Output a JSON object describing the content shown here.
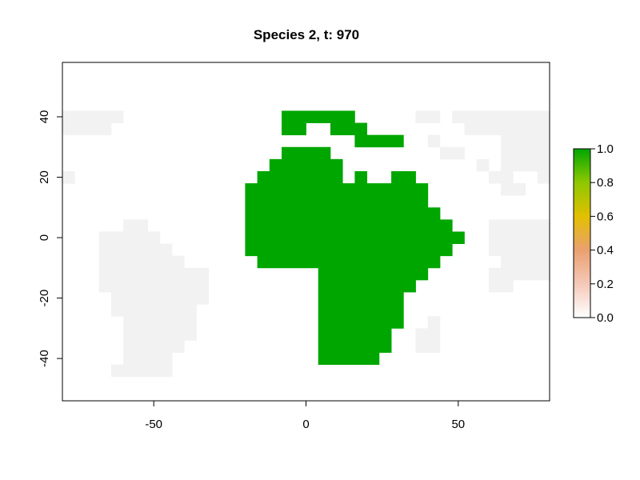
{
  "chart_data": {
    "type": "heatmap",
    "title": "Species 2, t: 970",
    "xlabel": "",
    "ylabel": "",
    "xlim": [
      -80,
      80
    ],
    "ylim": [
      -54,
      58
    ],
    "x_ticks": [
      -50,
      0,
      50
    ],
    "x_tick_labels": [
      "-50",
      "0",
      "50"
    ],
    "y_ticks": [
      -40,
      -20,
      0,
      20,
      40
    ],
    "y_tick_labels": [
      "-40",
      "-20",
      "0",
      "20",
      "40"
    ],
    "cell_size": 4,
    "colors": {
      "land_zero": "#f2f2f2",
      "occupied": "#00a600",
      "frame": "#000000"
    },
    "legend": {
      "position": "right",
      "min": 0.0,
      "max": 1.0,
      "tick_labels": [
        "0.0",
        "0.2",
        "0.4",
        "0.6",
        "0.8",
        "1.0"
      ],
      "gradient": [
        "#ffffff",
        "#f4c8b8",
        "#eaa070",
        "#e2c000",
        "#8ec800",
        "#00a600"
      ]
    },
    "occupied_value": 1.0,
    "zero_value": 0.0,
    "occupied_rows": [
      {
        "y": 40,
        "x_ranges": [
          [
            -8,
            8
          ],
          [
            8,
            16
          ]
        ]
      },
      {
        "y": 36,
        "x_ranges": [
          [
            -8,
            0
          ],
          [
            8,
            20
          ]
        ]
      },
      {
        "y": 32,
        "x_ranges": [
          [
            16,
            32
          ]
        ]
      },
      {
        "y": 28,
        "x_ranges": [
          [
            -8,
            8
          ]
        ]
      },
      {
        "y": 24,
        "x_ranges": [
          [
            -12,
            12
          ]
        ]
      },
      {
        "y": 20,
        "x_ranges": [
          [
            -16,
            12
          ],
          [
            16,
            20
          ],
          [
            28,
            36
          ]
        ]
      },
      {
        "y": 16,
        "x_ranges": [
          [
            -20,
            40
          ]
        ]
      },
      {
        "y": 12,
        "x_ranges": [
          [
            -20,
            40
          ]
        ]
      },
      {
        "y": 8,
        "x_ranges": [
          [
            -20,
            44
          ]
        ]
      },
      {
        "y": 4,
        "x_ranges": [
          [
            -20,
            48
          ]
        ]
      },
      {
        "y": 0,
        "x_ranges": [
          [
            -20,
            52
          ]
        ]
      },
      {
        "y": -4,
        "x_ranges": [
          [
            -20,
            48
          ]
        ]
      },
      {
        "y": -8,
        "x_ranges": [
          [
            -16,
            44
          ]
        ]
      },
      {
        "y": -12,
        "x_ranges": [
          [
            4,
            40
          ]
        ]
      },
      {
        "y": -16,
        "x_ranges": [
          [
            4,
            36
          ]
        ]
      },
      {
        "y": -20,
        "x_ranges": [
          [
            4,
            32
          ]
        ]
      },
      {
        "y": -24,
        "x_ranges": [
          [
            4,
            32
          ]
        ]
      },
      {
        "y": -28,
        "x_ranges": [
          [
            4,
            32
          ]
        ]
      },
      {
        "y": -32,
        "x_ranges": [
          [
            4,
            28
          ]
        ]
      },
      {
        "y": -36,
        "x_ranges": [
          [
            4,
            28
          ]
        ]
      },
      {
        "y": -40,
        "x_ranges": [
          [
            4,
            24
          ]
        ]
      }
    ],
    "zero_rows": [
      {
        "y": 40,
        "x_ranges": [
          [
            -80,
            -60
          ],
          [
            36,
            44
          ],
          [
            48,
            80
          ]
        ]
      },
      {
        "y": 36,
        "x_ranges": [
          [
            -80,
            -64
          ],
          [
            52,
            72
          ],
          [
            72,
            80
          ]
        ]
      },
      {
        "y": 32,
        "x_ranges": [
          [
            40,
            44
          ],
          [
            64,
            80
          ]
        ]
      },
      {
        "y": 28,
        "x_ranges": [
          [
            44,
            52
          ],
          [
            64,
            80
          ]
        ]
      },
      {
        "y": 24,
        "x_ranges": [
          [
            56,
            60
          ],
          [
            64,
            80
          ]
        ]
      },
      {
        "y": 20,
        "x_ranges": [
          [
            -80,
            -76
          ],
          [
            60,
            68
          ],
          [
            76,
            80
          ]
        ]
      },
      {
        "y": 16,
        "x_ranges": [
          [
            64,
            72
          ]
        ]
      },
      {
        "y": 4,
        "x_ranges": [
          [
            -60,
            -52
          ],
          [
            60,
            80
          ]
        ]
      },
      {
        "y": 0,
        "x_ranges": [
          [
            -68,
            -48
          ],
          [
            60,
            80
          ]
        ]
      },
      {
        "y": -4,
        "x_ranges": [
          [
            -68,
            -44
          ],
          [
            60,
            64
          ],
          [
            64,
            80
          ]
        ]
      },
      {
        "y": -8,
        "x_ranges": [
          [
            -68,
            -40
          ],
          [
            64,
            80
          ]
        ]
      },
      {
        "y": -12,
        "x_ranges": [
          [
            -68,
            -32
          ],
          [
            60,
            80
          ]
        ]
      },
      {
        "y": -16,
        "x_ranges": [
          [
            -68,
            -32
          ],
          [
            60,
            68
          ]
        ]
      },
      {
        "y": -20,
        "x_ranges": [
          [
            -64,
            -32
          ]
        ]
      },
      {
        "y": -24,
        "x_ranges": [
          [
            -64,
            -36
          ]
        ]
      },
      {
        "y": -28,
        "x_ranges": [
          [
            -60,
            -36
          ],
          [
            40,
            44
          ]
        ]
      },
      {
        "y": -32,
        "x_ranges": [
          [
            -60,
            -36
          ],
          [
            36,
            44
          ]
        ]
      },
      {
        "y": -36,
        "x_ranges": [
          [
            -60,
            -40
          ],
          [
            36,
            44
          ]
        ]
      },
      {
        "y": -40,
        "x_ranges": [
          [
            -60,
            -44
          ]
        ]
      },
      {
        "y": -44,
        "x_ranges": [
          [
            -64,
            -44
          ]
        ]
      }
    ]
  }
}
